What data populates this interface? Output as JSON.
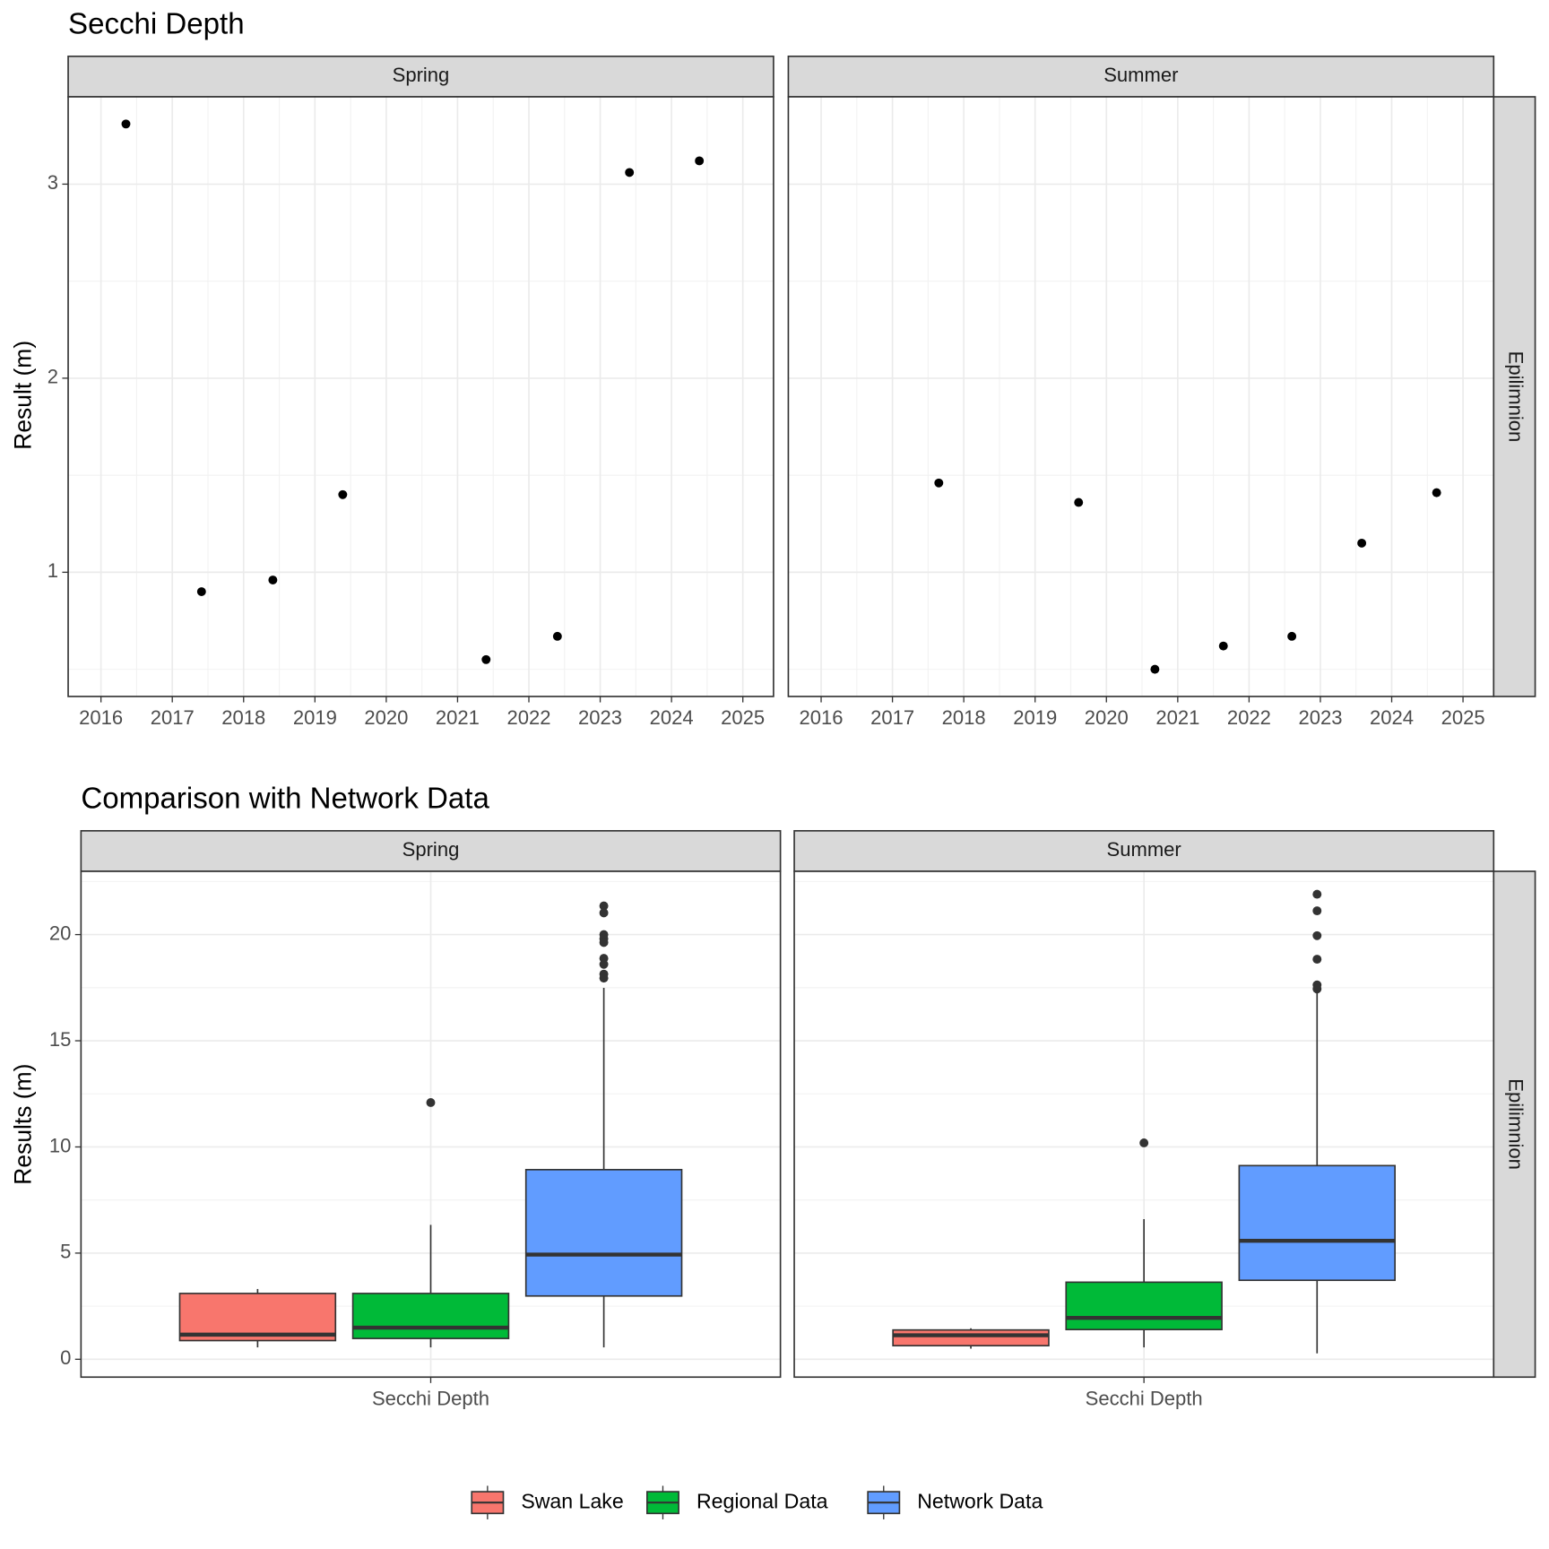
{
  "chart_data": [
    {
      "type": "scatter",
      "title": "Secchi Depth",
      "y_label": "Result (m)",
      "strip_right": "Epilimnion",
      "color": "#000000",
      "grid": true,
      "panels": [
        "Spring",
        "Summer"
      ],
      "data": [
        {
          "x": [
            2016.35,
            2017.41,
            2018.41,
            2019.39,
            2021.4,
            2022.4,
            2023.41,
            2024.39
          ],
          "y": [
            3.31,
            0.9,
            0.96,
            1.4,
            0.55,
            0.67,
            3.06,
            3.12
          ]
        },
        {
          "x": [
            2017.65,
            2019.61,
            2020.68,
            2021.64,
            2022.6,
            2023.58,
            2024.63
          ],
          "y": [
            1.46,
            1.36,
            0.5,
            0.62,
            0.67,
            1.15,
            1.41
          ]
        }
      ],
      "xlim": [
        2015.54,
        2025.43
      ],
      "xticks": [
        2016,
        2017,
        2018,
        2019,
        2020,
        2021,
        2022,
        2023,
        2024,
        2025
      ],
      "ylim": [
        0.36,
        3.45
      ],
      "yticks": [
        1,
        2,
        3
      ]
    },
    {
      "type": "box",
      "title": "Comparison with Network Data",
      "y_label": "Results (m)",
      "strip_right": "Epilimnion",
      "x_category": "Secchi Depth",
      "grid": true,
      "legend": "bottom",
      "panels": [
        "Spring",
        "Summer"
      ],
      "series": [
        {
          "name": "Swan Lake",
          "color": "#f8766d",
          "stats": [
            {
              "min": 0.56,
              "q1": 0.88,
              "median": 1.16,
              "q3": 3.1,
              "max": 3.31,
              "outliers": []
            },
            {
              "min": 0.5,
              "q1": 0.64,
              "median": 1.13,
              "q3": 1.38,
              "max": 1.46,
              "outliers": []
            }
          ]
        },
        {
          "name": "Regional Data",
          "color": "#00ba38",
          "stats": [
            {
              "min": 0.56,
              "q1": 0.98,
              "median": 1.49,
              "q3": 3.1,
              "max": 6.33,
              "outliers": [
                12.09
              ]
            },
            {
              "min": 0.56,
              "q1": 1.4,
              "median": 1.95,
              "q3": 3.63,
              "max": 6.6,
              "outliers": [
                10.19
              ]
            }
          ]
        },
        {
          "name": "Network Data",
          "color": "#619cff",
          "stats": [
            {
              "min": 0.56,
              "q1": 2.98,
              "median": 4.93,
              "q3": 8.93,
              "max": 17.49,
              "outliers": [
                21.35,
                21.02,
                20.0,
                19.81,
                19.63,
                18.88,
                18.6,
                18.14,
                17.95
              ]
            },
            {
              "min": 0.28,
              "q1": 3.72,
              "median": 5.58,
              "q3": 9.12,
              "max": 17.3,
              "outliers": [
                21.9,
                21.12,
                19.95,
                18.84,
                17.63,
                17.44
              ]
            }
          ]
        }
      ],
      "ylim": [
        -0.84,
        22.98
      ],
      "yticks": [
        0,
        5,
        10,
        15,
        20
      ]
    }
  ]
}
